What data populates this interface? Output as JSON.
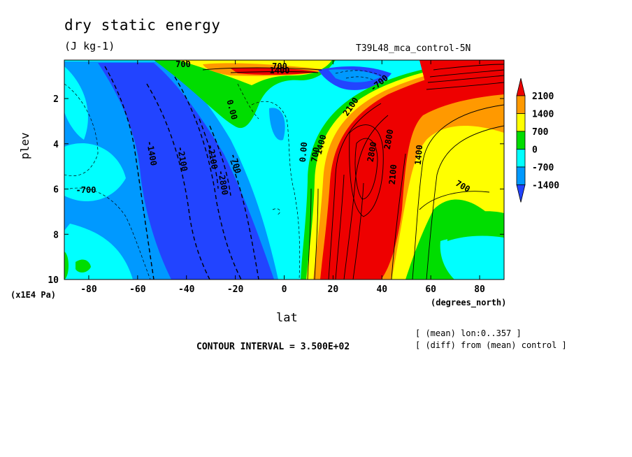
{
  "chart_data": {
    "type": "heatmap",
    "title": "dry static energy",
    "units": "(J kg-1)",
    "run_name": "T39L48_mca_control-5N",
    "xlabel": "lat",
    "x_units": "(degrees_north)",
    "ylabel": "plev",
    "y_units": "(x1E4 Pa)",
    "x_ticks": [
      "-80",
      "-60",
      "-40",
      "-20",
      "0",
      "20",
      "40",
      "60",
      "80"
    ],
    "y_ticks": [
      "2",
      "4",
      "6",
      "8",
      "10"
    ],
    "xlim": [
      -90,
      90
    ],
    "ylim": [
      10,
      0.3
    ],
    "contour_interval": "CONTOUR INTERVAL = 3.500E+02",
    "notes": [
      "[ (mean) lon:0..357 ]",
      "[ (diff) from (mean) control ]"
    ],
    "colorbar": {
      "labels": [
        "2100",
        "1400",
        "700",
        "0",
        "-700",
        "-1400"
      ],
      "colors": [
        "#ee0000",
        "#ff9900",
        "#ffff00",
        "#00dd00",
        "#00ffff",
        "#0099ff",
        "#2244ff"
      ]
    },
    "contour_labels": [
      "700",
      "1400",
      "700",
      "0.00",
      "-1400",
      "-2100",
      "-2100",
      "-2800",
      "-700",
      "-700",
      "-700",
      "0.00",
      "700",
      "1400",
      "2100",
      "2800",
      "2800",
      "2100",
      "1400",
      "700"
    ]
  }
}
